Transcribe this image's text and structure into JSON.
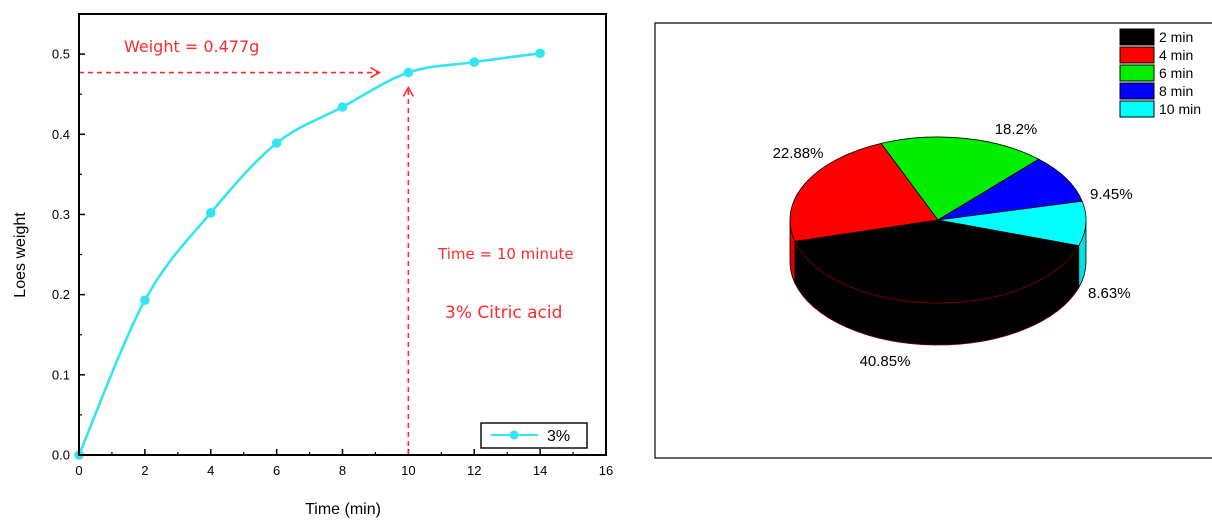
{
  "chart_data": [
    {
      "type": "line",
      "xlabel": "Time (min)",
      "ylabel": "Loes weight",
      "xlim": [
        0,
        16
      ],
      "ylim": [
        0,
        0.55
      ],
      "xticks": [
        "0",
        "2",
        "4",
        "6",
        "8",
        "10",
        "12",
        "14",
        "16"
      ],
      "yticks": [
        "0.0",
        "0.1",
        "0.2",
        "0.3",
        "0.4",
        "0.5"
      ],
      "grid": false,
      "legend_position": "bottom-right",
      "series": [
        {
          "name": "3%",
          "color": "#33e5f0",
          "x": [
            0,
            2,
            4,
            6,
            8,
            10,
            12,
            14
          ],
          "y": [
            0.0,
            0.193,
            0.302,
            0.389,
            0.434,
            0.477,
            0.49,
            0.501
          ]
        }
      ],
      "annotations": {
        "weight_text": "Weight = 0.477g",
        "time_text": "Time = 10 minute",
        "acid_text": "3% Citric acid",
        "color": "#ff2a2a",
        "marker_x": 10,
        "marker_y": 0.477
      }
    },
    {
      "type": "pie",
      "style": "3d",
      "categories": [
        "2 min",
        "4 min",
        "6 min",
        "8 min",
        "10 min"
      ],
      "values": [
        40.85,
        22.88,
        18.2,
        9.45,
        8.63
      ],
      "labels": [
        "40.85%",
        "22.88%",
        "18.2%",
        "9.45%",
        "8.63%"
      ],
      "colors": [
        "#000000",
        "#ff0000",
        "#00ee00",
        "#0000ff",
        "#00ffff"
      ],
      "legend_position": "top-right"
    }
  ]
}
